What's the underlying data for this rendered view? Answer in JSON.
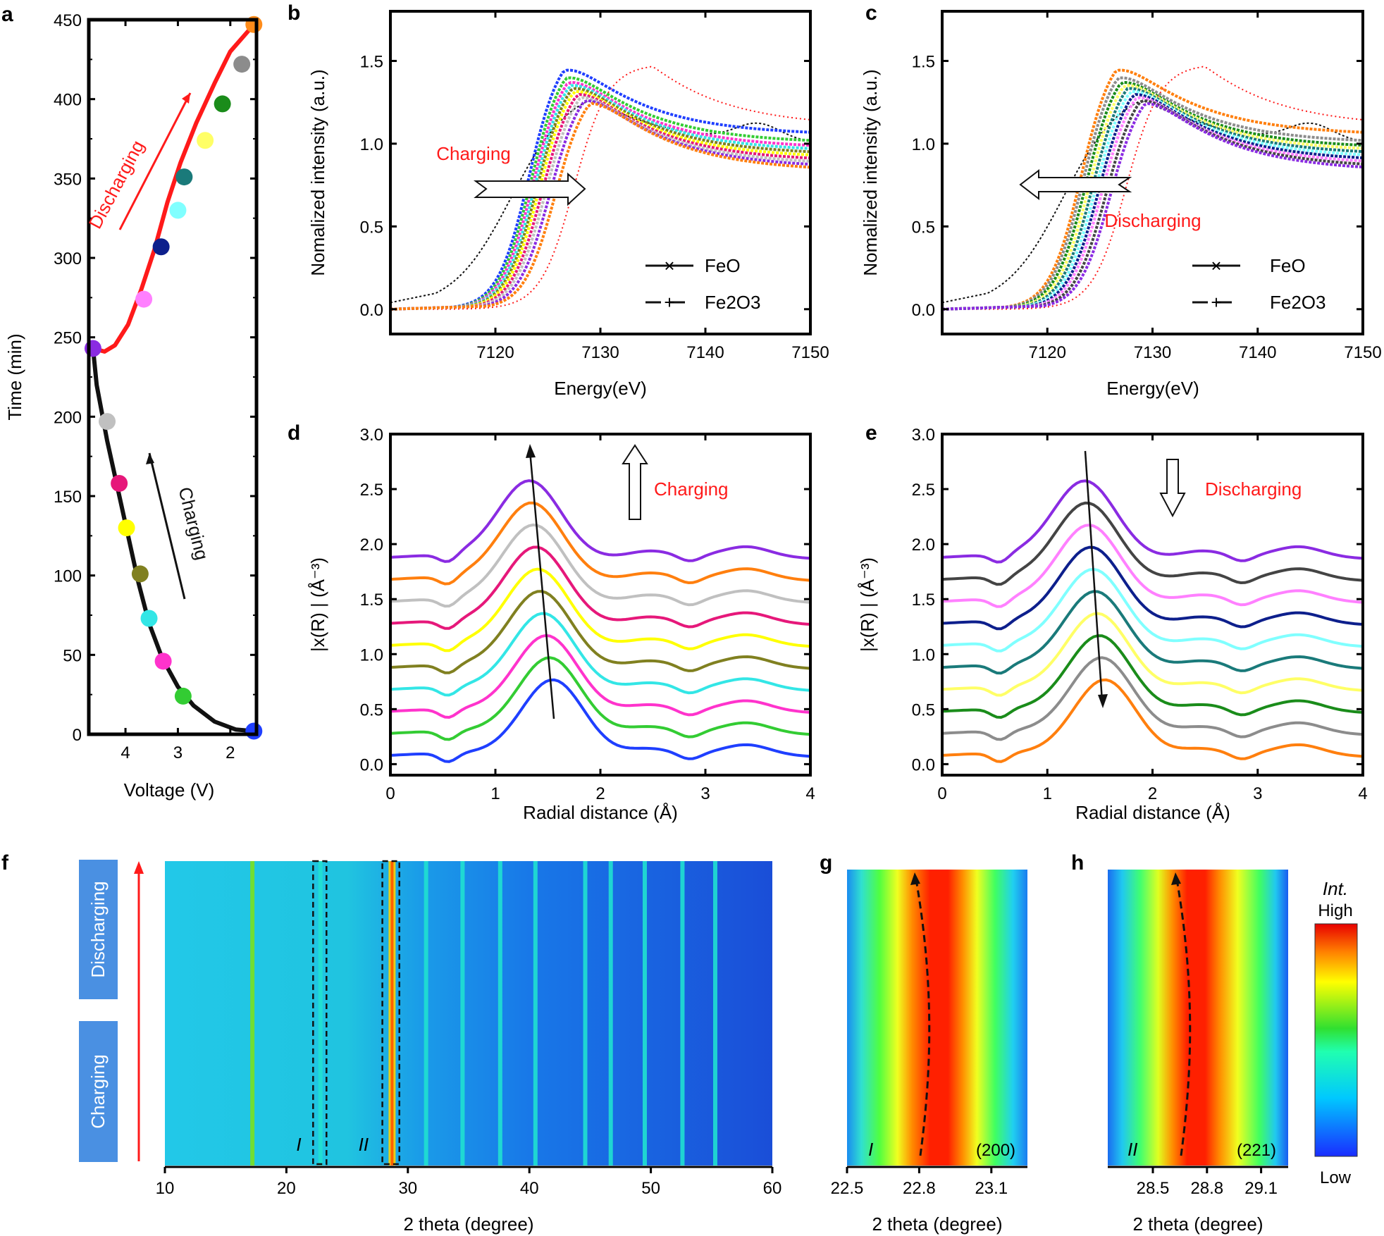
{
  "colors": {
    "red": "#ff1a1a",
    "black": "#111111",
    "orange": "#ff7f0e",
    "charge_label_bg": "#4a90e2"
  },
  "panel_labels": {
    "a": "a",
    "b": "b",
    "c": "c",
    "d": "d",
    "e": "e",
    "f": "f",
    "g": "g",
    "h": "h"
  },
  "chart_data": [
    {
      "id": "a",
      "type": "line",
      "xlabel": "Voltage (V)",
      "ylabel": "Time (min)",
      "xlim": [
        4.7,
        1.5
      ],
      "ylim": [
        0,
        450
      ],
      "xticks": [
        4,
        3,
        2
      ],
      "yticks": [
        0,
        50,
        100,
        150,
        200,
        250,
        300,
        350,
        400,
        450
      ],
      "annotations": {
        "charging": "Charging",
        "discharging": "Discharging"
      },
      "series": [
        {
          "name": "Charging",
          "color": "#111111",
          "points": [
            [
              1.55,
              2
            ],
            [
              1.9,
              3
            ],
            [
              2.3,
              8
            ],
            [
              2.7,
              18
            ],
            [
              3.0,
              30
            ],
            [
              3.3,
              48
            ],
            [
              3.55,
              70
            ],
            [
              3.75,
              95
            ],
            [
              3.95,
              125
            ],
            [
              4.15,
              155
            ],
            [
              4.35,
              185
            ],
            [
              4.55,
              220
            ],
            [
              4.62,
              243
            ]
          ]
        },
        {
          "name": "Discharging",
          "color": "#ff1a1a",
          "points": [
            [
              4.62,
              243
            ],
            [
              4.4,
              241
            ],
            [
              4.2,
              245
            ],
            [
              3.95,
              258
            ],
            [
              3.7,
              280
            ],
            [
              3.45,
              305
            ],
            [
              3.2,
              335
            ],
            [
              2.95,
              360
            ],
            [
              2.65,
              385
            ],
            [
              2.3,
              410
            ],
            [
              2.0,
              430
            ],
            [
              1.55,
              447
            ]
          ]
        }
      ],
      "charge_markers": [
        {
          "v": 1.55,
          "t": 2,
          "color": "#1f3fff"
        },
        {
          "v": 2.9,
          "t": 24,
          "color": "#33cc33"
        },
        {
          "v": 3.28,
          "t": 46,
          "color": "#ff33cc"
        },
        {
          "v": 3.55,
          "t": 73,
          "color": "#33e6e6"
        },
        {
          "v": 3.72,
          "t": 101,
          "color": "#808020"
        },
        {
          "v": 3.98,
          "t": 130,
          "color": "#ffff00"
        },
        {
          "v": 4.12,
          "t": 158,
          "color": "#e6187a"
        },
        {
          "v": 4.35,
          "t": 197,
          "color": "#c0c0c0"
        },
        {
          "v": 4.62,
          "t": 243,
          "color": "#8a2be2"
        }
      ],
      "discharge_markers": [
        {
          "v": 3.65,
          "t": 274,
          "color": "#ff80ff"
        },
        {
          "v": 3.32,
          "t": 307,
          "color": "#0d1f8c"
        },
        {
          "v": 3.0,
          "t": 330,
          "color": "#80ffff"
        },
        {
          "v": 2.88,
          "t": 351,
          "color": "#1a7a7a"
        },
        {
          "v": 2.48,
          "t": 374,
          "color": "#ffff66"
        },
        {
          "v": 2.15,
          "t": 397,
          "color": "#1a8c1a"
        },
        {
          "v": 1.78,
          "t": 422,
          "color": "#8c8c8c"
        },
        {
          "v": 1.55,
          "t": 447,
          "color": "#ff8c1a"
        }
      ]
    },
    {
      "id": "b",
      "type": "line",
      "xlabel": "Energy(eV)",
      "ylabel": "Nomalized intensity (a.u.)",
      "xlim": [
        7110,
        7150
      ],
      "ylim": [
        -0.15,
        1.8
      ],
      "xticks": [
        7120,
        7130,
        7140,
        7150
      ],
      "yticks": [
        0.0,
        0.5,
        1.0,
        1.5
      ],
      "annotation": "Charging",
      "legend": [
        "FeO",
        "Fe2O3"
      ],
      "series": [
        {
          "color": "#1f3fff",
          "E0": 7121.0,
          "peak": 1.6
        },
        {
          "color": "#33cc33",
          "E0": 7121.2,
          "peak": 1.55
        },
        {
          "color": "#ff33cc",
          "E0": 7121.4,
          "peak": 1.52
        },
        {
          "color": "#33e6e6",
          "E0": 7121.6,
          "peak": 1.5
        },
        {
          "color": "#808020",
          "E0": 7121.8,
          "peak": 1.48
        },
        {
          "color": "#ffff00",
          "E0": 7122.0,
          "peak": 1.46
        },
        {
          "color": "#e6187a",
          "E0": 7122.3,
          "peak": 1.44
        },
        {
          "color": "#c0c0c0",
          "E0": 7122.6,
          "peak": 1.42
        },
        {
          "color": "#8a2be2",
          "E0": 7123.0,
          "peak": 1.4
        },
        {
          "color": "#ff7f0e",
          "E0": 7123.5,
          "peak": 1.38
        }
      ]
    },
    {
      "id": "c",
      "type": "line",
      "xlabel": "Energy(eV)",
      "ylabel": "Nomalized intensity (a.u.)",
      "xlim": [
        7110,
        7150
      ],
      "ylim": [
        -0.15,
        1.8
      ],
      "xticks": [
        7120,
        7130,
        7140,
        7150
      ],
      "yticks": [
        0.0,
        0.5,
        1.0,
        1.5
      ],
      "annotation": "Discharging",
      "legend": [
        "FeO",
        "Fe2O3"
      ],
      "series": [
        {
          "color": "#ff7f0e",
          "E0": 7121.0,
          "peak": 1.6
        },
        {
          "color": "#8c8c8c",
          "E0": 7121.2,
          "peak": 1.55
        },
        {
          "color": "#1a8c1a",
          "E0": 7121.5,
          "peak": 1.52
        },
        {
          "color": "#ffff66",
          "E0": 7121.8,
          "peak": 1.5
        },
        {
          "color": "#1a7a7a",
          "E0": 7122.1,
          "peak": 1.48
        },
        {
          "color": "#80ffff",
          "E0": 7122.4,
          "peak": 1.46
        },
        {
          "color": "#0d1f8c",
          "E0": 7122.7,
          "peak": 1.44
        },
        {
          "color": "#ff80ff",
          "E0": 7123.0,
          "peak": 1.42
        },
        {
          "color": "#444444",
          "E0": 7123.4,
          "peak": 1.4
        },
        {
          "color": "#8a2be2",
          "E0": 7123.8,
          "peak": 1.38
        }
      ]
    },
    {
      "id": "d",
      "type": "line",
      "xlabel": "Radial distance (Å)",
      "ylabel": "|x(R) | (Å⁻³)",
      "xlim": [
        0,
        4
      ],
      "ylim": [
        -0.1,
        3.0
      ],
      "xticks": [
        0,
        1,
        2,
        3,
        4
      ],
      "yticks": [
        0.0,
        0.5,
        1.0,
        1.5,
        2.0,
        2.5,
        3.0
      ],
      "annotation": "Charging",
      "offsets": [
        0.0,
        0.2,
        0.4,
        0.6,
        0.8,
        1.0,
        1.2,
        1.4,
        1.6,
        1.8
      ],
      "peaks": [
        1.55,
        1.52,
        1.49,
        1.46,
        1.43,
        1.41,
        1.39,
        1.37,
        1.35,
        1.33
      ],
      "colors": [
        "#1f3fff",
        "#33cc33",
        "#ff33cc",
        "#33e6e6",
        "#808020",
        "#ffff00",
        "#e6187a",
        "#c0c0c0",
        "#ff7f0e",
        "#8a2be2"
      ]
    },
    {
      "id": "e",
      "type": "line",
      "xlabel": "Radial distance (Å)",
      "ylabel": "|x(R) | (Å⁻³)",
      "xlim": [
        0,
        4
      ],
      "ylim": [
        -0.1,
        3.0
      ],
      "xticks": [
        0,
        1,
        2,
        3,
        4
      ],
      "yticks": [
        0.0,
        0.5,
        1.0,
        1.5,
        2.0,
        2.5,
        3.0
      ],
      "annotation": "Discharging",
      "offsets": [
        0.0,
        0.2,
        0.4,
        0.6,
        0.8,
        1.0,
        1.2,
        1.4,
        1.6,
        1.8
      ],
      "peaks": [
        1.55,
        1.52,
        1.5,
        1.48,
        1.46,
        1.44,
        1.42,
        1.4,
        1.38,
        1.36
      ],
      "colors": [
        "#ff7f0e",
        "#8c8c8c",
        "#1a8c1a",
        "#ffff66",
        "#1a7a7a",
        "#80ffff",
        "#0d1f8c",
        "#ff80ff",
        "#444444",
        "#8a2be2"
      ]
    },
    {
      "id": "f",
      "type": "heatmap",
      "xlabel": "2 theta (degree)",
      "xlim": [
        10,
        60
      ],
      "xticks": [
        10,
        20,
        30,
        40,
        50,
        60
      ],
      "peak_positions": [
        17.2,
        22.8,
        28.7,
        31.5,
        34.5,
        37.6,
        40.5,
        44.6,
        46.7,
        49.5,
        52.6,
        55.3
      ],
      "boxes": [
        {
          "label": "I",
          "x0": 22.2,
          "x1": 23.3
        },
        {
          "label": "II",
          "x0": 27.9,
          "x1": 29.3
        }
      ],
      "side_labels": [
        "Discharging",
        "Charging"
      ]
    },
    {
      "id": "g",
      "type": "heatmap",
      "xlabel": "2 theta (degree)",
      "xlim": [
        22.5,
        23.25
      ],
      "xticks": [
        22.5,
        22.8,
        23.1
      ],
      "roman": "I",
      "hkl": "(200)"
    },
    {
      "id": "h",
      "type": "heatmap",
      "xlabel": "2 theta (degree)",
      "xlim": [
        28.25,
        29.25
      ],
      "xticks": [
        28.5,
        28.8,
        29.1
      ],
      "roman": "II",
      "hkl": "(221)"
    }
  ],
  "colorbar": {
    "title": "Int.",
    "high": "High",
    "low": "Low"
  }
}
